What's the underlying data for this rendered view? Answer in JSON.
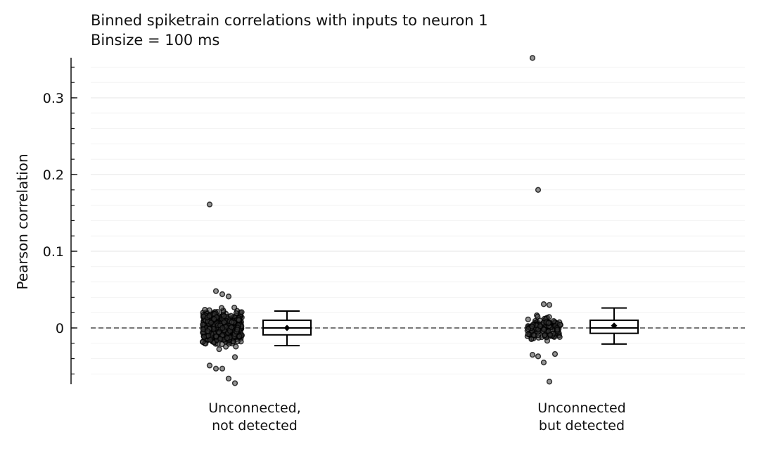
{
  "chart_data": {
    "type": "scatter",
    "title": "Binned spiketrain correlations with inputs to neuron 1",
    "subtitle": "Binsize = 100 ms",
    "xlabel": "",
    "ylabel": "Pearson correlation",
    "ylim": [
      -0.074,
      0.354
    ],
    "yticks": [
      0,
      0.1,
      0.2,
      0.3
    ],
    "ytick_labels": [
      "0",
      "0.1",
      "0.2",
      "0.3"
    ],
    "reference_line": {
      "y": 0,
      "style": "dashed",
      "color": "#777777"
    },
    "grid": true,
    "categories": [
      {
        "label_line1": "Unconnected,",
        "label_line2": "not detected"
      },
      {
        "label_line1": "Unconnected",
        "label_line2": "but detected"
      }
    ],
    "groups": [
      {
        "box": {
          "q1": -0.009,
          "median": 0.0,
          "q3": 0.01,
          "whisker_low": -0.023,
          "whisker_high": 0.022,
          "mean": 0.0
        },
        "approx_points": 600,
        "outliers": [
          0.161,
          0.048,
          0.044,
          0.041,
          -0.038,
          -0.049,
          -0.053,
          -0.053,
          -0.066,
          -0.072
        ]
      },
      {
        "box": {
          "q1": -0.007,
          "median": 0.0,
          "q3": 0.01,
          "whisker_low": -0.021,
          "whisker_high": 0.026,
          "mean": 0.003
        },
        "approx_points": 150,
        "outliers": [
          0.352,
          0.18,
          0.031,
          0.03,
          -0.034,
          -0.035,
          -0.037,
          -0.045,
          -0.07
        ]
      }
    ],
    "colors": {
      "points": "#000000",
      "box": "#000000",
      "grid": "#e6e6e6"
    }
  }
}
